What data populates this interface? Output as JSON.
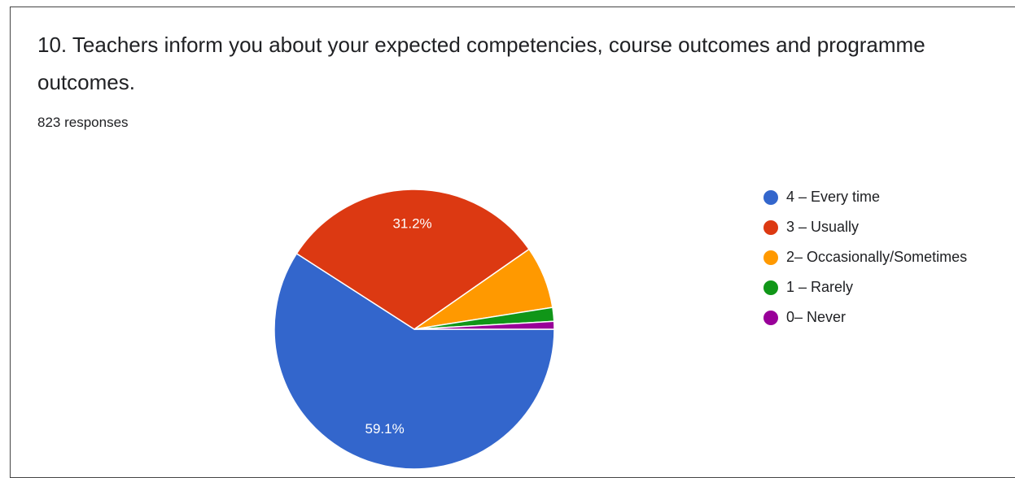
{
  "chart_data": {
    "type": "pie",
    "title": "10. Teachers inform you about your expected competencies, course outcomes and programme outcomes.",
    "subtitle": "823 responses",
    "categories": [
      "4 – Every time",
      "3 – Usually",
      "2– Occasionally/Sometimes",
      "1 – Rarely",
      "0– Never"
    ],
    "values": [
      59.1,
      31.2,
      7.2,
      1.6,
      0.9
    ],
    "value_labels": [
      "59.1%",
      "31.2%",
      null,
      null,
      null
    ],
    "colors": [
      "#3366cc",
      "#dc3912",
      "#ff9900",
      "#109618",
      "#990099"
    ],
    "legend": "right"
  }
}
